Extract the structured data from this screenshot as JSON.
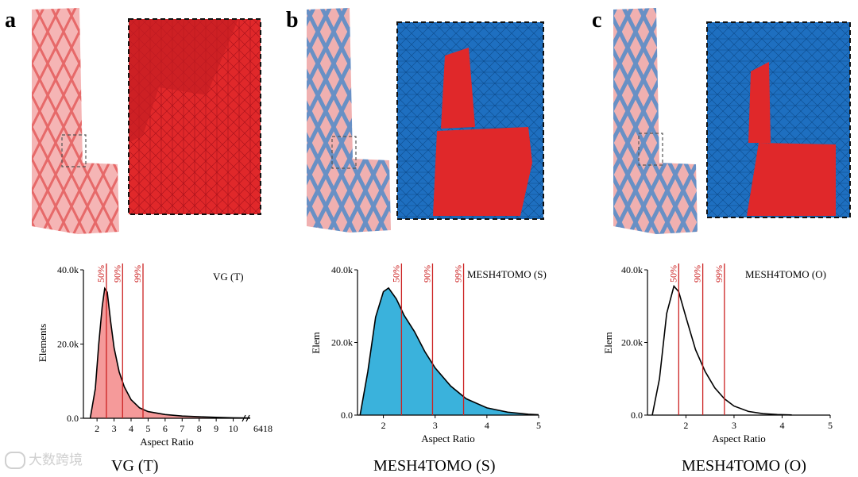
{
  "panels": {
    "a": {
      "letter": "a",
      "legend": "VG (T)",
      "caption": "VG (T)"
    },
    "b": {
      "letter": "b",
      "legend": "MESH4TOMO (S)",
      "caption": "MESH4TOMO (S)"
    },
    "c": {
      "letter": "c",
      "legend": "MESH4TOMO (O)",
      "caption": "MESH4TOMO (O)"
    }
  },
  "watermark": "大数跨境",
  "colors": {
    "red_mesh": "#e0282a",
    "blue_mesh": "#1e6fc0",
    "hist_red_fill": "#f59a9a",
    "hist_blue_fill": "#3ab2dc",
    "percentile_line": "#cc2222"
  },
  "chart_data": [
    {
      "type": "area",
      "title": "VG (T)",
      "xlabel": "Aspect Ratio",
      "ylabel": "Elements",
      "xticks": [
        "2",
        "3",
        "4",
        "5",
        "6",
        "7",
        "8",
        "9",
        "10"
      ],
      "xtick_break_label": "6418",
      "yticks": [
        "0.0",
        "20.0k",
        "40.0k"
      ],
      "ylim": [
        0,
        40000
      ],
      "percentiles": [
        {
          "label": "50%",
          "x": 2.55
        },
        {
          "label": "90%",
          "x": 3.5
        },
        {
          "label": "99%",
          "x": 4.7
        }
      ],
      "series": [
        {
          "x": [
            1.6,
            1.9,
            2.1,
            2.3,
            2.45,
            2.6,
            2.8,
            3.0,
            3.3,
            3.6,
            4.0,
            4.5,
            5.0,
            6.0,
            7.0,
            8.0,
            9.0,
            10.0,
            11.0
          ],
          "values": [
            0,
            8000,
            20000,
            30000,
            35000,
            34000,
            26000,
            19000,
            12500,
            8500,
            5000,
            2800,
            1800,
            1000,
            600,
            400,
            250,
            120,
            60
          ]
        }
      ]
    },
    {
      "type": "area",
      "title": "MESH4TOMO (S)",
      "xlabel": "Aspect Ratio",
      "ylabel": "Elem",
      "xticks": [
        "2",
        "3",
        "4",
        "5"
      ],
      "yticks": [
        "0.0",
        "20.0k",
        "40.0k"
      ],
      "ylim": [
        0,
        40000
      ],
      "percentiles": [
        {
          "label": "50%",
          "x": 2.35
        },
        {
          "label": "90%",
          "x": 2.95
        },
        {
          "label": "99%",
          "x": 3.55
        }
      ],
      "series": [
        {
          "x": [
            1.55,
            1.7,
            1.85,
            2.0,
            2.1,
            2.25,
            2.4,
            2.6,
            2.8,
            3.0,
            3.3,
            3.6,
            4.0,
            4.4,
            4.8,
            5.0
          ],
          "values": [
            0,
            12000,
            27000,
            34000,
            35000,
            32000,
            27500,
            23000,
            17500,
            13000,
            8000,
            4500,
            2000,
            800,
            250,
            100
          ]
        }
      ]
    },
    {
      "type": "line",
      "title": "MESH4TOMO (O)",
      "xlabel": "Aspect Ratio",
      "ylabel": "Elem",
      "xticks": [
        "2",
        "3",
        "4",
        "5"
      ],
      "yticks": [
        "0.0",
        "20.0k",
        "40.0k"
      ],
      "ylim": [
        0,
        40000
      ],
      "percentiles": [
        {
          "label": "50%",
          "x": 1.85
        },
        {
          "label": "90%",
          "x": 2.35
        },
        {
          "label": "99%",
          "x": 2.8
        }
      ],
      "series": [
        {
          "x": [
            1.3,
            1.45,
            1.6,
            1.75,
            1.85,
            2.0,
            2.2,
            2.4,
            2.6,
            2.8,
            3.0,
            3.3,
            3.6,
            3.9,
            4.2
          ],
          "values": [
            0,
            10000,
            28000,
            35500,
            34000,
            27000,
            18000,
            12000,
            7500,
            4500,
            2500,
            1000,
            400,
            150,
            50
          ]
        }
      ]
    }
  ]
}
